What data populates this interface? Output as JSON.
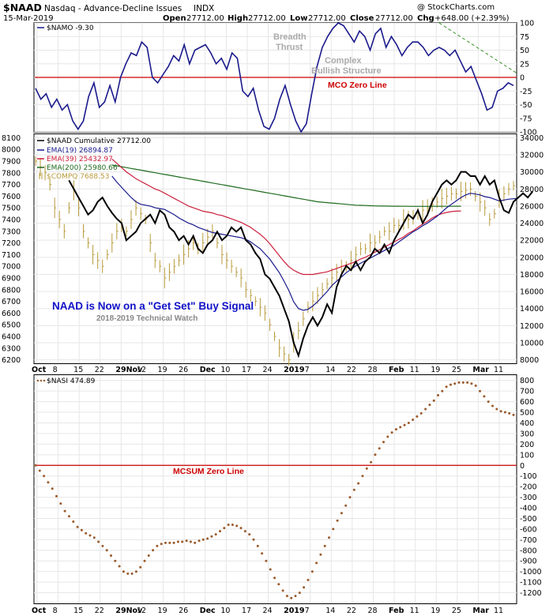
{
  "header": {
    "symbol": "$NAAD",
    "name": "Nasdaq - Advance-Decline Issues",
    "exchange": "INDX",
    "date": "15-Mar-2019",
    "open_label": "Open",
    "open": "27712.00",
    "high_label": "High",
    "high": "27712.00",
    "low_label": "Low",
    "low": "27712.00",
    "close_label": "Close",
    "close": "27712.00",
    "chg_label": "Chg",
    "chg": "+648.00 (+2.39%)",
    "source": "@ StockCharts.com"
  },
  "colors": {
    "mco": "#1a1a8c",
    "zero_line": "#cc0000",
    "naad": "#000000",
    "ema19": "#1a1a8c",
    "ema39": "#cc1f3c",
    "ema200": "#1f6b1f",
    "compq": "#b89a3a",
    "nasi": "#9a5a2a",
    "trend": "#4a9a3a"
  },
  "x_axis": {
    "labels": [
      "Oct",
      "8",
      "15",
      "22",
      "29Nov",
      "12",
      "19",
      "26",
      "Dec",
      "10",
      "17",
      "24",
      "2019",
      "7",
      "14",
      "22",
      "28",
      "Feb",
      "11",
      "19",
      "25",
      "Mar",
      "11"
    ],
    "bold": [
      "Oct",
      "29Nov",
      "Dec",
      "2019",
      "Feb",
      "Mar"
    ]
  },
  "annotations": {
    "breadth_thrust": [
      "Breadth",
      "Thrust"
    ],
    "complex": [
      "Complex",
      "Bullish Structure"
    ],
    "mco_zero": "MCO Zero Line",
    "signal": "NAAD is Now on a \"Get Set\" Buy Signal",
    "watch": "2018-2019 Technical Watch",
    "mcsum_zero": "MCSUM Zero Line"
  },
  "chart_data": [
    {
      "type": "line",
      "legend": "$NAMO -9.30",
      "ylim": [
        -100,
        100
      ],
      "yticks": [
        100,
        75,
        50,
        25,
        0,
        -25,
        -50,
        -75,
        -100
      ],
      "series": [
        {
          "name": "$NAMO",
          "values": [
            -20,
            -40,
            -30,
            -55,
            -40,
            -60,
            -50,
            -80,
            -95,
            -80,
            -35,
            -10,
            -55,
            -45,
            -15,
            -45,
            0,
            25,
            45,
            40,
            65,
            55,
            0,
            -10,
            5,
            20,
            40,
            30,
            60,
            25,
            50,
            55,
            60,
            45,
            25,
            35,
            15,
            45,
            35,
            -25,
            -35,
            -20,
            -60,
            -90,
            -95,
            -75,
            -40,
            -15,
            -50,
            -80,
            -100,
            -85,
            -30,
            20,
            55,
            75,
            90,
            100,
            95,
            80,
            65,
            85,
            75,
            50,
            80,
            90,
            55,
            75,
            60,
            40,
            55,
            65,
            65,
            55,
            40,
            50,
            55,
            50,
            40,
            50,
            30,
            10,
            20,
            -5,
            -30,
            -60,
            -55,
            -25,
            -20,
            -10,
            -15
          ]
        }
      ],
      "trend_line": {
        "x": [
          76,
          135
        ],
        "y": [
          100,
          5
        ]
      }
    },
    {
      "type": "line",
      "legend": [
        "$NAAD Cumulative 27712.00",
        "EMA(19) 26894.87",
        "EMA(39) 25432.97",
        "EMA(200) 25980.66",
        "$COMPQ 7688.53"
      ],
      "ylim_left": [
        6200,
        8100
      ],
      "yticks_left": [
        8100,
        8000,
        7900,
        7800,
        7700,
        7600,
        7500,
        7400,
        7300,
        7200,
        7100,
        7000,
        6900,
        6800,
        6700,
        6600,
        6500,
        6400,
        6300,
        6200
      ],
      "ylim_right": [
        8000,
        34000
      ],
      "yticks_right": [
        34000,
        32000,
        30000,
        28000,
        26000,
        24000,
        22000,
        20000,
        18000,
        16000,
        14000,
        12000,
        10000,
        8000
      ],
      "series": [
        {
          "name": "$NAAD Cumulative",
          "values": [
            null,
            null,
            null,
            null,
            null,
            null,
            null,
            29000,
            28000,
            27000,
            26000,
            25000,
            25500,
            26500,
            27000,
            26000,
            25200,
            24500,
            24000,
            22000,
            22500,
            23000,
            24000,
            24500,
            25000,
            24000,
            25500,
            25000,
            23500,
            23000,
            22000,
            22500,
            21500,
            22500,
            21000,
            20500,
            21500,
            22000,
            23000,
            22000,
            22500,
            23500,
            23000,
            23500,
            22000,
            21500,
            20500,
            19800,
            18000,
            17500,
            16500,
            15500,
            14000,
            12500,
            10000,
            8500,
            10500,
            12000,
            13000,
            12000,
            13000,
            14500,
            13500,
            16500,
            18000,
            19000,
            18500,
            19500,
            18500,
            19500,
            20000,
            21000,
            20500,
            21500,
            20500,
            22000,
            23000,
            24000,
            25000,
            24500,
            25500,
            24000,
            25000,
            26500,
            27500,
            28500,
            29000,
            28500,
            29000,
            30000,
            30000,
            29500,
            29500,
            28500,
            29500,
            28500,
            29000,
            27000,
            25500,
            25200,
            26500,
            27000,
            27500,
            27000,
            27712
          ]
        },
        {
          "name": "EMA(19)",
          "values": [
            null,
            null,
            null,
            null,
            null,
            null,
            null,
            null,
            null,
            null,
            null,
            null,
            null,
            null,
            null,
            null,
            29500,
            28800,
            28200,
            27600,
            27000,
            26500,
            26200,
            26100,
            26000,
            25800,
            25700,
            25600,
            25300,
            25000,
            24600,
            24300,
            24000,
            23800,
            23500,
            23300,
            23100,
            22900,
            22800,
            22700,
            22600,
            22500,
            22400,
            22300,
            22100,
            21800,
            21400,
            21000,
            20400,
            19800,
            19000,
            18200,
            17200,
            16100,
            14800,
            14000,
            13800,
            13900,
            14300,
            14800,
            15400,
            16000,
            16700,
            17200,
            17700,
            18200,
            18600,
            19000,
            19300,
            19600,
            19900,
            20200,
            20500,
            20800,
            21100,
            21400,
            21800,
            22200,
            22600,
            23000,
            23300,
            23700,
            24000,
            24400,
            24800,
            25300,
            25800,
            26200,
            26600,
            27000,
            27300,
            27500,
            27400,
            27300,
            27100,
            27000,
            26800,
            26600,
            26700,
            26800,
            26850,
            26900
          ]
        },
        {
          "name": "EMA(39)",
          "values": [
            null,
            null,
            null,
            null,
            null,
            null,
            null,
            null,
            null,
            null,
            null,
            null,
            null,
            null,
            null,
            null,
            31500,
            31000,
            30500,
            30000,
            29600,
            29200,
            28900,
            28600,
            28300,
            28000,
            27800,
            27500,
            27200,
            26900,
            26600,
            26300,
            26000,
            25800,
            25600,
            25400,
            25300,
            25200,
            25000,
            24900,
            24700,
            24500,
            24300,
            24100,
            23800,
            23500,
            23100,
            22700,
            22200,
            21600,
            20900,
            20200,
            19500,
            18900,
            18500,
            18200,
            18000,
            18000,
            18000,
            18100,
            18200,
            18300,
            18500,
            18700,
            18900,
            19100,
            19300,
            19500,
            19800,
            20000,
            20300,
            20600,
            20900,
            21200,
            21500,
            21800,
            22100,
            22400,
            22800,
            23100,
            23500,
            23900,
            24200,
            24600,
            24900,
            25100,
            25250,
            25350,
            25400,
            25430
          ]
        },
        {
          "name": "EMA(200)",
          "values": [
            null,
            null,
            null,
            null,
            null,
            null,
            null,
            null,
            null,
            null,
            null,
            null,
            null,
            null,
            null,
            null,
            30800,
            30700,
            30600,
            30500,
            30400,
            30300,
            30200,
            30100,
            30000,
            29900,
            29800,
            29700,
            29600,
            29500,
            29400,
            29300,
            29200,
            29100,
            29000,
            28900,
            28800,
            28700,
            28600,
            28500,
            28400,
            28300,
            28200,
            28100,
            28000,
            27900,
            27800,
            27700,
            27600,
            27500,
            27400,
            27300,
            27200,
            27100,
            27000,
            26900,
            26800,
            26700,
            26600,
            26500,
            26450,
            26400,
            26350,
            26300,
            26250,
            26200,
            26150,
            26100,
            26080,
            26060,
            26040,
            26020,
            26000,
            26000,
            25990,
            25980,
            25980,
            25970,
            25970,
            25960,
            25960,
            25960,
            25960,
            25960,
            25970,
            25970,
            25970,
            25975,
            25980,
            25980
          ]
        },
        {
          "name": "$COMPQ",
          "values": [
            7900,
            7850,
            7800,
            7700,
            7500,
            7400,
            7300,
            7500,
            7650,
            7500,
            7300,
            7200,
            7100,
            7050,
            7000,
            7100,
            7200,
            7300,
            7350,
            7300,
            7400,
            7500,
            7450,
            7400,
            7200,
            7050,
            7000,
            6900,
            6950,
            7000,
            7050,
            7100,
            7150,
            7200,
            7150,
            7200,
            7250,
            7300,
            7200,
            7100,
            7050,
            7000,
            6950,
            6900,
            6800,
            6750,
            6700,
            6650,
            6600,
            6500,
            6400,
            6300,
            6250,
            6200,
            6350,
            6450,
            6550,
            6650,
            6700,
            6750,
            6800,
            6850,
            6900,
            6950,
            7000,
            7000,
            7050,
            7100,
            7150,
            7150,
            7200,
            7200,
            7250,
            7300,
            7300,
            7350,
            7350,
            7400,
            7400,
            7420,
            7450,
            7480,
            7500,
            7530,
            7550,
            7580,
            7600,
            7620,
            7620,
            7640,
            7650,
            7660,
            7600,
            7550,
            7500,
            7400,
            7450,
            7580,
            7620,
            7660,
            7690
          ]
        }
      ]
    },
    {
      "type": "scatter",
      "legend": "$NASI 474.89",
      "ylim": [
        -1300,
        850
      ],
      "yticks": [
        800,
        700,
        600,
        500,
        400,
        300,
        200,
        100,
        0,
        -100,
        -200,
        -300,
        -400,
        -500,
        -600,
        -700,
        -800,
        -900,
        -1000,
        -1100,
        -1200
      ],
      "series": [
        {
          "name": "$NASI",
          "values": [
            0,
            -50,
            -100,
            -160,
            -220,
            -290,
            -360,
            -430,
            -480,
            -530,
            -580,
            -610,
            -640,
            -660,
            -680,
            -720,
            -760,
            -800,
            -850,
            -900,
            -950,
            -1000,
            -1020,
            -1020,
            -1000,
            -960,
            -900,
            -850,
            -800,
            -760,
            -740,
            -730,
            -730,
            -730,
            -720,
            -720,
            -710,
            -720,
            -730,
            -710,
            -700,
            -690,
            -670,
            -650,
            -620,
            -590,
            -560,
            -560,
            -570,
            -590,
            -620,
            -650,
            -700,
            -760,
            -830,
            -900,
            -980,
            -1060,
            -1120,
            -1180,
            -1230,
            -1250,
            -1230,
            -1200,
            -1150,
            -1080,
            -1000,
            -920,
            -840,
            -760,
            -680,
            -600,
            -520,
            -450,
            -380,
            -300,
            -230,
            -170,
            -100,
            -30,
            30,
            100,
            160,
            220,
            270,
            310,
            340,
            360,
            380,
            400,
            430,
            460,
            490,
            530,
            570,
            610,
            660,
            700,
            740,
            760,
            770,
            780,
            780,
            780,
            770,
            750,
            700,
            650,
            600,
            560,
            530,
            510,
            500,
            490,
            475
          ]
        }
      ]
    }
  ]
}
